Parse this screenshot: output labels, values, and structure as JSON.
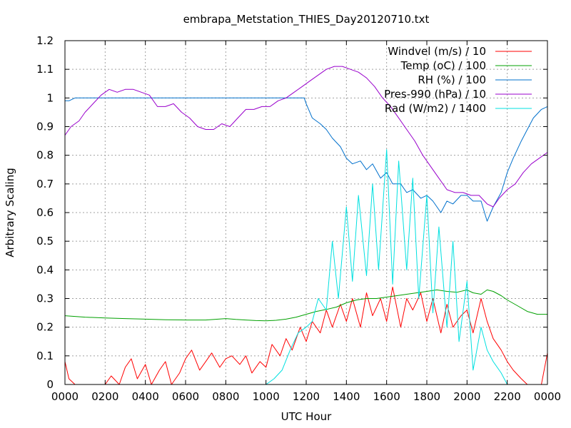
{
  "chart_data": {
    "type": "line",
    "title": "embrapa_Metstation_THIES_Day20120710.txt",
    "xlabel": "UTC Hour",
    "ylabel": "Arbitrary Scaling",
    "xlim": [
      0,
      24
    ],
    "ylim": [
      0,
      1.2
    ],
    "grid": true,
    "legend_position": "top-right",
    "x_tick_labels": [
      "0000",
      "0200",
      "0400",
      "0600",
      "0800",
      "1000",
      "1200",
      "1400",
      "1600",
      "1800",
      "2000",
      "2200",
      "0000"
    ],
    "y_tick_labels": [
      "0",
      "0.1",
      "0.2",
      "0.3",
      "0.4",
      "0.5",
      "0.6",
      "0.7",
      "0.8",
      "0.9",
      "1",
      "1.1",
      "1.2"
    ],
    "series": [
      {
        "name": "Windvel (m/s) / 10",
        "color": "#ff0000",
        "x": [
          0,
          0.2,
          0.5,
          1,
          1.5,
          2,
          2.3,
          2.7,
          3,
          3.3,
          3.6,
          4,
          4.3,
          4.7,
          5,
          5.3,
          5.7,
          6,
          6.3,
          6.7,
          7,
          7.3,
          7.7,
          8,
          8.3,
          8.7,
          9,
          9.3,
          9.7,
          10,
          10.3,
          10.7,
          11,
          11.3,
          11.7,
          12,
          12.3,
          12.7,
          13,
          13.3,
          13.7,
          14,
          14.3,
          14.7,
          15,
          15.3,
          15.7,
          16,
          16.3,
          16.7,
          17,
          17.3,
          17.7,
          18,
          18.3,
          18.7,
          19,
          19.3,
          19.7,
          20,
          20.3,
          20.7,
          21,
          21.3,
          21.7,
          22,
          22.3,
          22.7,
          23,
          23.3,
          23.7,
          24
        ],
        "y": [
          0.08,
          0.02,
          0,
          0,
          0,
          0,
          0.03,
          0,
          0.06,
          0.09,
          0.02,
          0.07,
          0,
          0.05,
          0.08,
          0,
          0.04,
          0.09,
          0.12,
          0.05,
          0.08,
          0.11,
          0.06,
          0.09,
          0.1,
          0.07,
          0.1,
          0.04,
          0.08,
          0.06,
          0.14,
          0.1,
          0.16,
          0.12,
          0.2,
          0.15,
          0.22,
          0.18,
          0.26,
          0.2,
          0.28,
          0.22,
          0.3,
          0.2,
          0.32,
          0.24,
          0.3,
          0.22,
          0.34,
          0.2,
          0.3,
          0.26,
          0.32,
          0.22,
          0.3,
          0.18,
          0.28,
          0.2,
          0.24,
          0.26,
          0.18,
          0.3,
          0.22,
          0.16,
          0.12,
          0.08,
          0.05,
          0.02,
          0,
          0,
          0,
          0.11
        ]
      },
      {
        "name": "Temp (oC) / 100",
        "color": "#00a000",
        "x": [
          0,
          1,
          2,
          3,
          4,
          5,
          6,
          7,
          8,
          8.5,
          9,
          9.5,
          10,
          10.5,
          11,
          11.5,
          12,
          12.5,
          13,
          13.5,
          14,
          14.5,
          15,
          15.5,
          16,
          16.5,
          17,
          17.5,
          18,
          18.5,
          19,
          19.5,
          20,
          20.3,
          20.7,
          21,
          21.3,
          21.7,
          22,
          22.5,
          23,
          23.5,
          24
        ],
        "y": [
          0.24,
          0.235,
          0.232,
          0.23,
          0.228,
          0.226,
          0.225,
          0.225,
          0.23,
          0.227,
          0.225,
          0.223,
          0.222,
          0.224,
          0.228,
          0.235,
          0.245,
          0.255,
          0.262,
          0.27,
          0.285,
          0.295,
          0.3,
          0.3,
          0.305,
          0.31,
          0.315,
          0.32,
          0.325,
          0.33,
          0.325,
          0.322,
          0.33,
          0.32,
          0.315,
          0.33,
          0.325,
          0.31,
          0.295,
          0.275,
          0.255,
          0.245,
          0.245
        ]
      },
      {
        "name": "RH (%) / 100",
        "color": "#0070cc",
        "x": [
          0,
          0.2,
          0.5,
          1,
          2,
          3,
          4,
          5,
          6,
          7,
          8,
          9,
          10,
          11,
          11.9,
          12,
          12.3,
          12.7,
          13,
          13.3,
          13.7,
          14,
          14.3,
          14.7,
          15,
          15.3,
          15.7,
          16,
          16.3,
          16.7,
          17,
          17.3,
          17.7,
          18,
          18.3,
          18.7,
          19,
          19.3,
          19.7,
          20,
          20.3,
          20.7,
          21,
          21.3,
          21.7,
          22,
          22.3,
          22.7,
          23,
          23.3,
          23.7,
          24
        ],
        "y": [
          0.99,
          0.99,
          1,
          1,
          1,
          1,
          1,
          1,
          1,
          1,
          1,
          1,
          1,
          1,
          1,
          0.98,
          0.93,
          0.91,
          0.89,
          0.86,
          0.83,
          0.79,
          0.77,
          0.78,
          0.75,
          0.77,
          0.72,
          0.74,
          0.7,
          0.7,
          0.67,
          0.68,
          0.65,
          0.66,
          0.64,
          0.6,
          0.64,
          0.63,
          0.66,
          0.66,
          0.64,
          0.64,
          0.57,
          0.62,
          0.67,
          0.74,
          0.79,
          0.85,
          0.89,
          0.93,
          0.96,
          0.97
        ]
      },
      {
        "name": "Pres-990 (hPa) / 10",
        "color": "#9900cc",
        "x": [
          0,
          0.3,
          0.7,
          1,
          1.4,
          1.8,
          2.2,
          2.6,
          3,
          3.4,
          3.8,
          4.2,
          4.6,
          5,
          5.4,
          5.8,
          6.2,
          6.6,
          7,
          7.4,
          7.8,
          8.2,
          8.6,
          9,
          9.4,
          9.8,
          10.2,
          10.6,
          11,
          11.4,
          11.8,
          12.2,
          12.6,
          13,
          13.4,
          13.8,
          14.2,
          14.6,
          15,
          15.4,
          15.8,
          16.2,
          16.6,
          17,
          17.4,
          17.8,
          18.2,
          18.6,
          19,
          19.4,
          19.8,
          20.2,
          20.6,
          21,
          21.3,
          21.6,
          22,
          22.4,
          22.8,
          23.2,
          23.6,
          24
        ],
        "y": [
          0.87,
          0.9,
          0.92,
          0.95,
          0.98,
          1.01,
          1.03,
          1.02,
          1.03,
          1.03,
          1.02,
          1.01,
          0.97,
          0.97,
          0.98,
          0.95,
          0.93,
          0.9,
          0.89,
          0.89,
          0.91,
          0.9,
          0.93,
          0.96,
          0.96,
          0.97,
          0.97,
          0.99,
          1.0,
          1.02,
          1.04,
          1.06,
          1.08,
          1.1,
          1.11,
          1.11,
          1.1,
          1.09,
          1.07,
          1.04,
          1.0,
          0.97,
          0.93,
          0.89,
          0.85,
          0.8,
          0.76,
          0.72,
          0.68,
          0.67,
          0.67,
          0.66,
          0.66,
          0.63,
          0.62,
          0.65,
          0.68,
          0.7,
          0.74,
          0.77,
          0.79,
          0.81
        ]
      },
      {
        "name": "Rad (W/m2) / 1400",
        "color": "#00e0e0",
        "x": [
          0,
          10,
          10.4,
          10.8,
          11.2,
          11.6,
          12,
          12.3,
          12.6,
          13,
          13.3,
          13.6,
          14,
          14.3,
          14.6,
          15,
          15.3,
          15.6,
          16,
          16.3,
          16.6,
          17,
          17.3,
          17.6,
          18,
          18.3,
          18.6,
          19,
          19.3,
          19.6,
          20,
          20.3,
          20.7,
          21,
          21.3,
          21.7,
          22,
          24
        ],
        "y": [
          0,
          0,
          0.02,
          0.05,
          0.12,
          0.18,
          0.2,
          0.22,
          0.3,
          0.26,
          0.5,
          0.3,
          0.62,
          0.36,
          0.66,
          0.38,
          0.7,
          0.4,
          0.82,
          0.35,
          0.78,
          0.4,
          0.72,
          0.3,
          0.66,
          0.25,
          0.55,
          0.2,
          0.5,
          0.15,
          0.36,
          0.05,
          0.2,
          0.12,
          0.08,
          0.04,
          0,
          0
        ]
      }
    ]
  }
}
